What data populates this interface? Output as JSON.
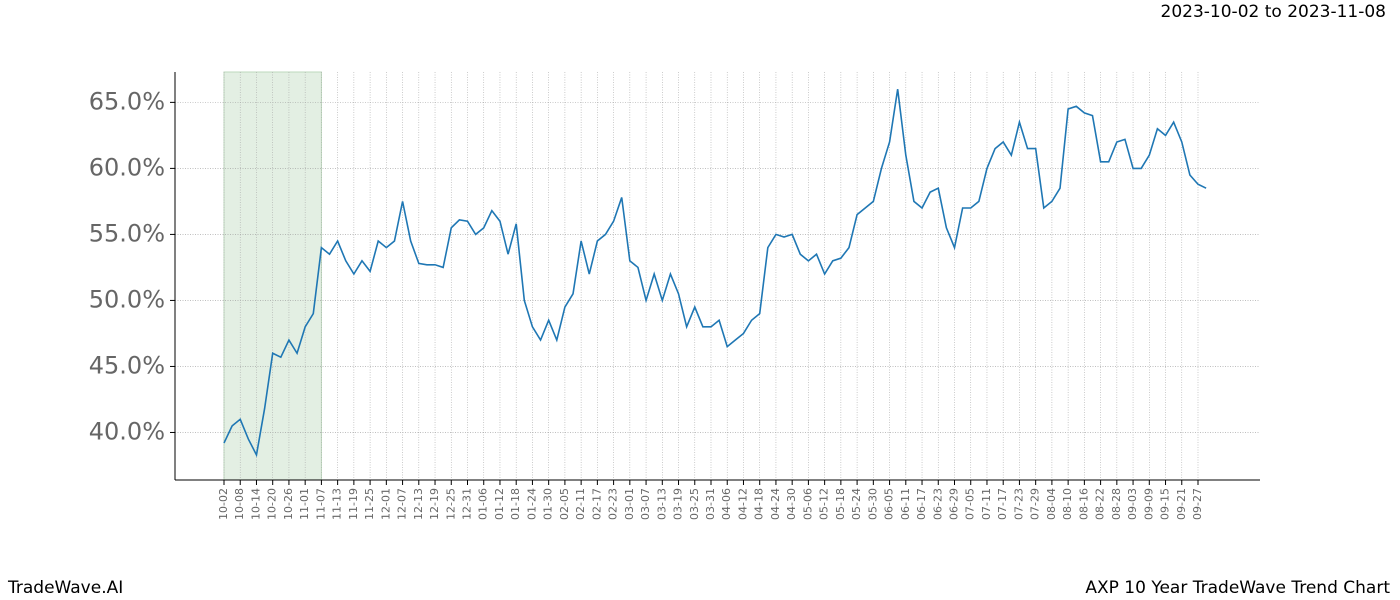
{
  "chart_data": {
    "type": "line",
    "title": "2023-10-02 to 2023-11-08",
    "footer_left": "TradeWave.AI",
    "footer_right": "AXP 10 Year TradeWave Trend Chart",
    "categories": [
      "10-02",
      null,
      "10-08",
      null,
      "10-14",
      null,
      "10-20",
      null,
      "10-26",
      null,
      "11-01",
      null,
      "11-07",
      null,
      "11-13",
      null,
      "11-19",
      null,
      "11-25",
      null,
      "12-01",
      null,
      "12-07",
      null,
      "12-13",
      null,
      "12-19",
      null,
      "12-25",
      null,
      "12-31",
      null,
      "01-06",
      null,
      "01-12",
      null,
      "01-18",
      null,
      "01-24",
      null,
      "01-30",
      null,
      "02-05",
      null,
      "02-11",
      null,
      "02-17",
      null,
      "02-23",
      null,
      "03-01",
      null,
      "03-07",
      null,
      "03-13",
      null,
      "03-19",
      null,
      "03-25",
      null,
      "03-31",
      null,
      "04-06",
      null,
      "04-12",
      null,
      "04-18",
      null,
      "04-24",
      null,
      "04-30",
      null,
      "05-06",
      null,
      "05-12",
      null,
      "05-18",
      null,
      "05-24",
      null,
      "05-30",
      null,
      "06-05",
      null,
      "06-11",
      null,
      "06-17",
      null,
      "06-23",
      null,
      "06-29",
      null,
      "07-05",
      null,
      "07-11",
      null,
      "07-17",
      null,
      "07-23",
      null,
      "07-29",
      null,
      "08-04",
      null,
      "08-10",
      null,
      "08-16",
      null,
      "08-22",
      null,
      "08-28",
      null,
      "09-03",
      null,
      "09-09",
      null,
      "09-15",
      null,
      "09-21",
      null,
      "09-27",
      null
    ],
    "values": [
      39.2,
      40.5,
      41,
      39.5,
      38.3,
      41.8,
      46,
      45.7,
      47,
      46,
      48,
      49,
      54,
      53.5,
      54.5,
      53,
      52,
      53,
      52.2,
      54.5,
      54,
      54.5,
      57.5,
      54.5,
      52.8,
      52.7,
      52.7,
      52.5,
      55.5,
      56.1,
      56,
      55,
      55.5,
      56.8,
      56,
      53.5,
      55.8,
      50,
      48,
      47,
      48.5,
      47,
      49.5,
      50.5,
      54.5,
      52,
      54.5,
      55,
      56,
      57.8,
      53,
      52.5,
      50,
      52,
      50,
      52,
      50.5,
      48,
      49.5,
      48,
      48,
      48.5,
      46.5,
      47,
      47.5,
      48.5,
      49,
      54,
      55,
      54.8,
      55,
      53.5,
      53,
      53.5,
      52,
      53,
      53.2,
      54,
      56.5,
      57,
      57.5,
      60,
      62,
      66,
      61,
      57.5,
      57,
      58.2,
      58.5,
      55.5,
      54,
      57,
      57,
      57.5,
      60,
      61.5,
      62,
      61,
      63.5,
      61.5,
      61.5,
      57,
      57.5,
      58.5,
      64.5,
      64.7,
      64.2,
      64,
      60.5,
      60.5,
      62,
      62.2,
      60,
      60,
      61,
      63,
      62.5,
      63.5,
      62,
      59.5,
      58.8,
      58.5
    ],
    "color": "#1f77b4",
    "shade": {
      "from": 0,
      "to": 12,
      "color": "#e3efe3"
    },
    "ylim": [
      36.4,
      67.3
    ],
    "yticks": [
      {
        "value": 40,
        "label": "40.0%"
      },
      {
        "value": 45,
        "label": "45.0%"
      },
      {
        "value": 50,
        "label": "50.0%"
      },
      {
        "value": 55,
        "label": "55.0%"
      },
      {
        "value": 60,
        "label": "60.0%"
      },
      {
        "value": 65,
        "label": "65.0%"
      }
    ],
    "grid": true
  }
}
